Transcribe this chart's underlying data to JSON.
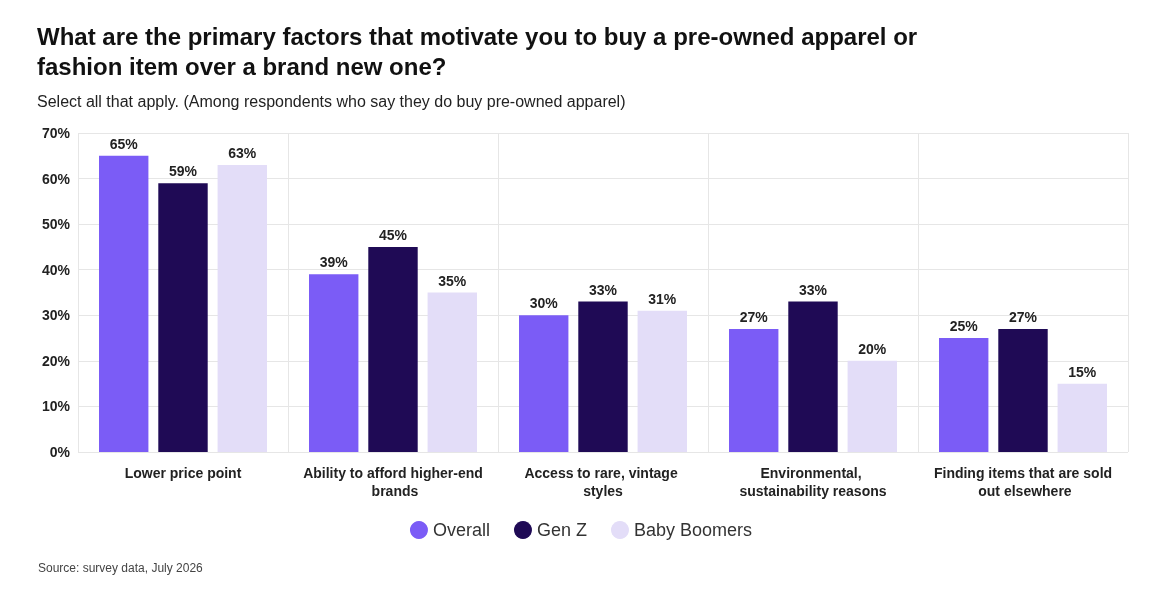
{
  "chart_data": {
    "type": "bar",
    "title": "What are the primary factors that motivate you to buy a pre-owned apparel or fashion item over a brand new one?",
    "subtitle": "Select all that apply. (Among respondents who say they do buy pre-owned apparel)",
    "categories": [
      "Lower price point",
      "Ability to afford higher-end brands",
      "Access to rare, vintage styles",
      "Environmental, sustainability reasons",
      "Finding items that are sold out elsewhere"
    ],
    "series": [
      {
        "name": "Overall",
        "color": "#7b5cf6",
        "values": [
          65,
          39,
          30,
          27,
          25
        ],
        "value_labels": [
          "65%",
          "39%",
          "30%",
          "27%",
          "25%"
        ]
      },
      {
        "name": "Gen Z",
        "color": "#1f0a55",
        "values": [
          59,
          45,
          33,
          33,
          27
        ],
        "value_labels": [
          "59%",
          "45%",
          "33%",
          "33%",
          "27%"
        ]
      },
      {
        "name": "Baby Boomers",
        "color": "#e3ddf8",
        "values": [
          63,
          35,
          31,
          20,
          15
        ],
        "value_labels": [
          "63%",
          "35%",
          "31%",
          "20%",
          "15%"
        ]
      }
    ],
    "ylim": [
      0,
      70
    ],
    "yticks": [
      {
        "value": 0,
        "label": "0%"
      },
      {
        "value": 10,
        "label": "10%"
      },
      {
        "value": 20,
        "label": "20%"
      },
      {
        "value": 30,
        "label": "30%"
      },
      {
        "value": 40,
        "label": "40%"
      },
      {
        "value": 50,
        "label": "50%"
      },
      {
        "value": 60,
        "label": "60%"
      },
      {
        "value": 70,
        "label": "70%"
      }
    ],
    "grid": true,
    "legend": "bottom",
    "annotations": [
      "Source: survey data, July 2026"
    ]
  }
}
